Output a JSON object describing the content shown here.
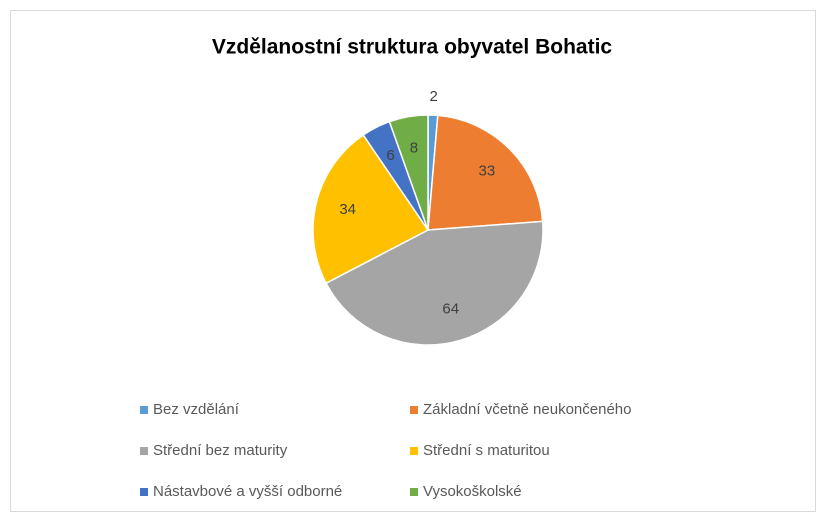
{
  "chart_data": {
    "type": "pie",
    "title": "Vzdělanostní struktura obyvatel Bohatic",
    "categories": [
      "Bez vzdělání",
      "Základní včetně neukončeného",
      "Střední bez maturity",
      "Střední s maturitou",
      "Nástavbové a vyšší odborné",
      "Vysokoškolské"
    ],
    "values": [
      2,
      33,
      64,
      34,
      6,
      8
    ],
    "colors": [
      "#5b9bd5",
      "#ed7d31",
      "#a5a5a5",
      "#ffc000",
      "#4472c4",
      "#70ad47"
    ],
    "legend": "bottom"
  }
}
